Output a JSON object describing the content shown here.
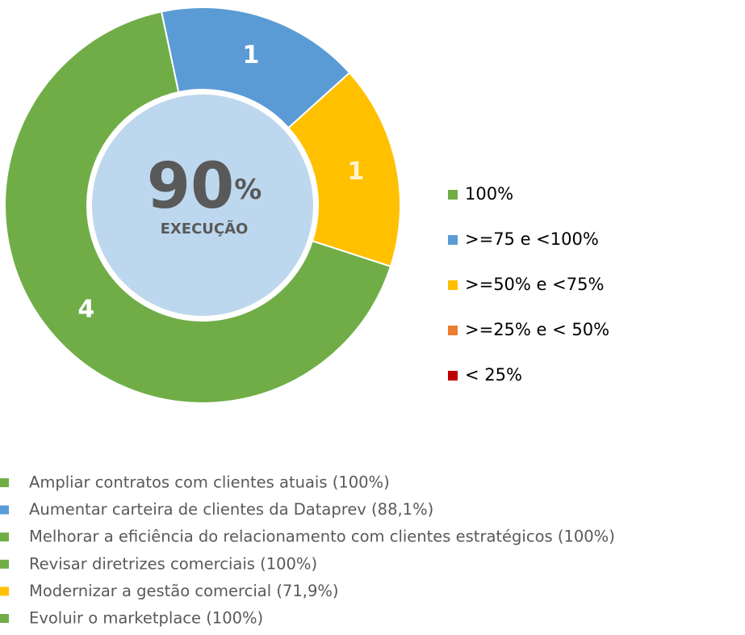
{
  "chart_data": {
    "type": "donut",
    "categories": [
      "100%",
      ">=75 e <100%",
      ">=50% e <75%",
      ">=25% e < 50%",
      "< 25%"
    ],
    "values": [
      4,
      1,
      1,
      0,
      0
    ],
    "colors": [
      "#70ad47",
      "#5b9bd5",
      "#ffc000",
      "#ed7d31",
      "#c00000"
    ],
    "label_colors": [
      "#ffffff",
      "#ffffff",
      "#fff2cc",
      "#ffffff",
      "#ffffff"
    ],
    "start_angle": 108,
    "center_value": 90,
    "center_unit": "%",
    "center_label": "EXECUÇÃO",
    "legend": "right"
  },
  "items": [
    {
      "text": "Ampliar contratos com clientes atuais (100%)",
      "color": "#70ad47"
    },
    {
      "text": "Aumentar carteira de clientes da Dataprev (88,1%)",
      "color": "#5b9bd5"
    },
    {
      "text": "Melhorar a eficiência do relacionamento com clientes estratégicos (100%)",
      "color": "#70ad47"
    },
    {
      "text": "Revisar diretrizes comerciais (100%)",
      "color": "#70ad47"
    },
    {
      "text": "Modernizar a gestão comercial (71,9%)",
      "color": "#ffc000"
    },
    {
      "text": "Evoluir o marketplace (100%)",
      "color": "#70ad47"
    }
  ]
}
